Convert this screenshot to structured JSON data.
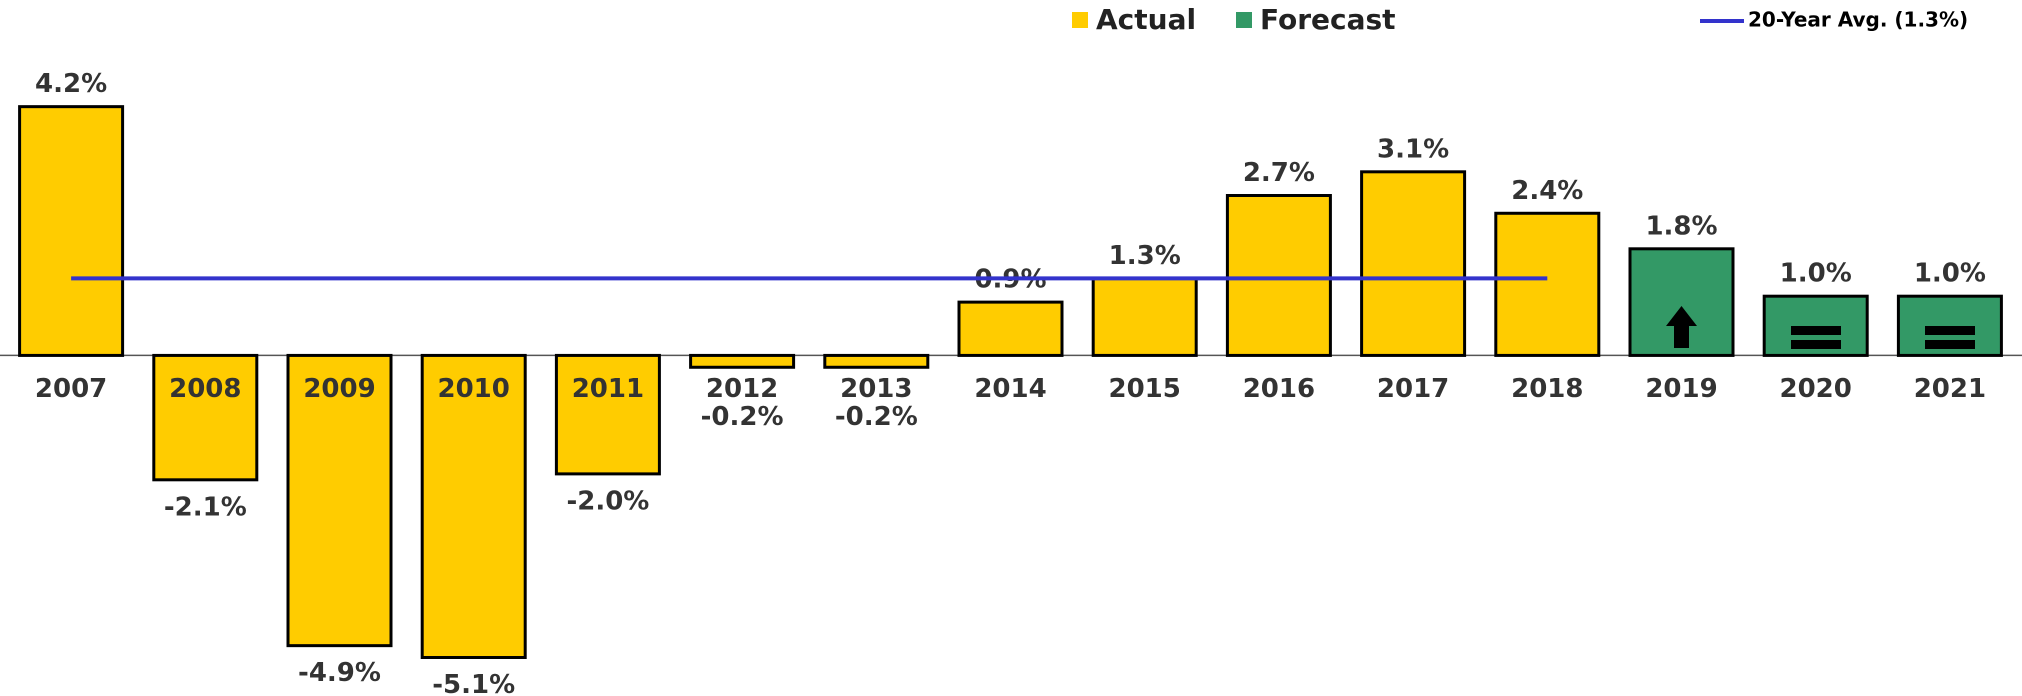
{
  "chart_data": {
    "type": "bar",
    "categories": [
      "2007",
      "2008",
      "2009",
      "2010",
      "2011",
      "2012",
      "2013",
      "2014",
      "2015",
      "2016",
      "2017",
      "2018",
      "2019",
      "2020",
      "2021"
    ],
    "series": [
      {
        "name": "Actual",
        "type": "bar",
        "color": "#FFCC00",
        "values": [
          4.2,
          -2.1,
          -4.9,
          -5.1,
          -2.0,
          -0.2,
          -0.2,
          0.9,
          1.3,
          2.7,
          3.1,
          2.4,
          null,
          null,
          null
        ],
        "value_labels": [
          "4.2%",
          "-2.1%",
          "-4.9%",
          "-5.1%",
          "-2.0%",
          "-0.2%",
          "-0.2%",
          "0.9%",
          "1.3%",
          "2.7%",
          "3.1%",
          "2.4%",
          null,
          null,
          null
        ]
      },
      {
        "name": "Forecast",
        "type": "bar",
        "color": "#339966",
        "values": [
          null,
          null,
          null,
          null,
          null,
          null,
          null,
          null,
          null,
          null,
          null,
          null,
          1.8,
          1.0,
          1.0
        ],
        "value_labels": [
          null,
          null,
          null,
          null,
          null,
          null,
          null,
          null,
          null,
          null,
          null,
          null,
          "1.8%",
          "1.0%",
          "1.0%"
        ]
      },
      {
        "name": "20-Year Avg. (1.3%)",
        "type": "line",
        "color": "#3333CC",
        "values": [
          1.3,
          1.3,
          1.3,
          1.3,
          1.3,
          1.3,
          1.3,
          1.3,
          1.3,
          1.3,
          1.3,
          1.3,
          null,
          null,
          null
        ]
      }
    ],
    "ylim": [
      -5.75,
      4.65
    ]
  }
}
